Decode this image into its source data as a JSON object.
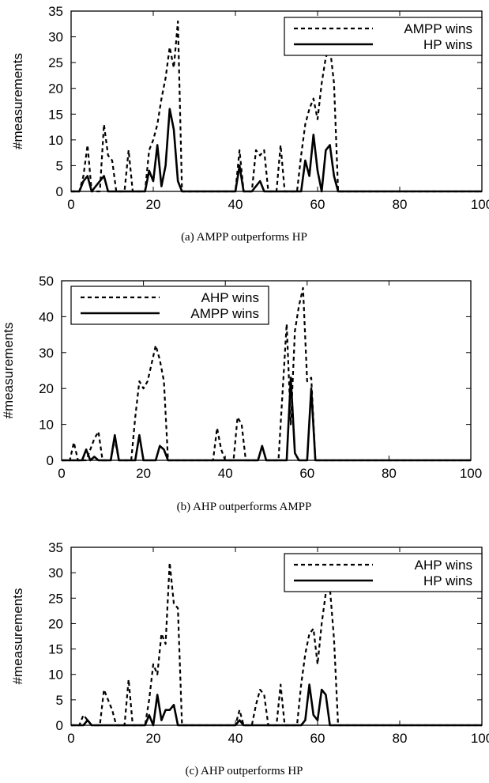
{
  "chart_data": [
    {
      "type": "line",
      "caption": "(a) AMPP outperforms HP",
      "ylabel": "#measurements",
      "xlim": [
        0,
        100
      ],
      "ylim": [
        0,
        35
      ],
      "xticks": [
        "0",
        "20",
        "40",
        "60",
        "80",
        "100"
      ],
      "yticks": [
        "0",
        "5",
        "10",
        "15",
        "20",
        "25",
        "30",
        "35"
      ],
      "legend_position": "top-right",
      "series": [
        {
          "name": "AMPP wins",
          "style": "dashed",
          "points": [
            [
              0,
              0
            ],
            [
              2,
              0
            ],
            [
              3,
              3
            ],
            [
              4,
              9
            ],
            [
              5,
              0
            ],
            [
              6,
              0
            ],
            [
              7,
              0
            ],
            [
              8,
              13
            ],
            [
              9,
              7
            ],
            [
              10,
              6
            ],
            [
              11,
              0
            ],
            [
              12,
              0
            ],
            [
              13,
              0
            ],
            [
              14,
              8
            ],
            [
              15,
              0
            ],
            [
              16,
              0
            ],
            [
              17,
              0
            ],
            [
              18,
              0
            ],
            [
              19,
              8
            ],
            [
              20,
              10
            ],
            [
              21,
              13
            ],
            [
              22,
              18
            ],
            [
              23,
              22
            ],
            [
              24,
              28
            ],
            [
              25,
              24
            ],
            [
              26,
              33
            ],
            [
              27,
              0
            ],
            [
              28,
              0
            ],
            [
              40,
              0
            ],
            [
              41,
              8
            ],
            [
              42,
              0
            ],
            [
              43,
              0
            ],
            [
              44,
              0
            ],
            [
              45,
              8
            ],
            [
              46,
              7
            ],
            [
              47,
              8
            ],
            [
              48,
              0
            ],
            [
              49,
              0
            ],
            [
              50,
              0
            ],
            [
              51,
              9
            ],
            [
              52,
              0
            ],
            [
              53,
              0
            ],
            [
              55,
              0
            ],
            [
              56,
              7
            ],
            [
              57,
              13
            ],
            [
              58,
              16
            ],
            [
              59,
              18
            ],
            [
              60,
              14
            ],
            [
              61,
              21
            ],
            [
              62,
              26
            ],
            [
              63,
              28
            ],
            [
              64,
              21
            ],
            [
              65,
              0
            ],
            [
              66,
              0
            ],
            [
              100,
              0
            ]
          ]
        },
        {
          "name": "HP wins",
          "style": "solid",
          "points": [
            [
              0,
              0
            ],
            [
              2,
              0
            ],
            [
              3,
              2
            ],
            [
              4,
              3
            ],
            [
              5,
              0
            ],
            [
              8,
              3
            ],
            [
              9,
              0
            ],
            [
              18,
              0
            ],
            [
              19,
              4
            ],
            [
              20,
              2
            ],
            [
              21,
              9
            ],
            [
              22,
              1
            ],
            [
              23,
              5
            ],
            [
              24,
              16
            ],
            [
              25,
              12
            ],
            [
              26,
              2
            ],
            [
              27,
              0
            ],
            [
              40,
              0
            ],
            [
              41,
              5
            ],
            [
              42,
              0
            ],
            [
              44,
              0
            ],
            [
              46,
              2
            ],
            [
              47,
              0
            ],
            [
              56,
              0
            ],
            [
              57,
              6
            ],
            [
              58,
              3
            ],
            [
              59,
              11
            ],
            [
              60,
              4
            ],
            [
              61,
              0
            ],
            [
              62,
              8
            ],
            [
              63,
              9
            ],
            [
              64,
              3
            ],
            [
              65,
              0
            ],
            [
              100,
              0
            ]
          ]
        }
      ]
    },
    {
      "type": "line",
      "caption": "(b) AHP outperforms AMPP",
      "ylabel": "#measurements",
      "xlim": [
        0,
        100
      ],
      "ylim": [
        0,
        50
      ],
      "xticks": [
        "0",
        "20",
        "40",
        "60",
        "80",
        "100"
      ],
      "yticks": [
        "0",
        "10",
        "20",
        "30",
        "40",
        "50"
      ],
      "legend_position": "top-left",
      "series": [
        {
          "name": "AHP wins",
          "style": "dashed",
          "points": [
            [
              0,
              0
            ],
            [
              2,
              0
            ],
            [
              3,
              5
            ],
            [
              4,
              0
            ],
            [
              6,
              0
            ],
            [
              7,
              3
            ],
            [
              8,
              6
            ],
            [
              9,
              8
            ],
            [
              10,
              0
            ],
            [
              12,
              0
            ],
            [
              13,
              6
            ],
            [
              14,
              0
            ],
            [
              17,
              0
            ],
            [
              18,
              12
            ],
            [
              19,
              22
            ],
            [
              20,
              20
            ],
            [
              21,
              22
            ],
            [
              22,
              27
            ],
            [
              23,
              32
            ],
            [
              24,
              28
            ],
            [
              25,
              22
            ],
            [
              26,
              0
            ],
            [
              27,
              0
            ],
            [
              37,
              0
            ],
            [
              38,
              9
            ],
            [
              39,
              3
            ],
            [
              40,
              0
            ],
            [
              42,
              0
            ],
            [
              43,
              12
            ],
            [
              44,
              10
            ],
            [
              45,
              0
            ],
            [
              48,
              0
            ],
            [
              49,
              4
            ],
            [
              50,
              0
            ],
            [
              53,
              0
            ],
            [
              55,
              38
            ],
            [
              56,
              10
            ],
            [
              57,
              36
            ],
            [
              58,
              43
            ],
            [
              59,
              48
            ],
            [
              60,
              22
            ],
            [
              61,
              23
            ],
            [
              62,
              0
            ],
            [
              63,
              0
            ],
            [
              100,
              0
            ]
          ]
        },
        {
          "name": "AMPP wins",
          "style": "solid",
          "points": [
            [
              0,
              0
            ],
            [
              5,
              0
            ],
            [
              6,
              3
            ],
            [
              7,
              0
            ],
            [
              8,
              1
            ],
            [
              9,
              0
            ],
            [
              12,
              0
            ],
            [
              13,
              7
            ],
            [
              14,
              0
            ],
            [
              18,
              0
            ],
            [
              19,
              7
            ],
            [
              20,
              0
            ],
            [
              23,
              0
            ],
            [
              24,
              4
            ],
            [
              25,
              3
            ],
            [
              26,
              0
            ],
            [
              48,
              0
            ],
            [
              49,
              4
            ],
            [
              50,
              0
            ],
            [
              55,
              0
            ],
            [
              56,
              23
            ],
            [
              57,
              2
            ],
            [
              58,
              0
            ],
            [
              60,
              0
            ],
            [
              61,
              20
            ],
            [
              62,
              0
            ],
            [
              100,
              0
            ]
          ]
        }
      ]
    },
    {
      "type": "line",
      "caption": "(c) AHP outperforms HP",
      "ylabel": "#measurements",
      "xlim": [
        0,
        100
      ],
      "ylim": [
        0,
        35
      ],
      "xticks": [
        "0",
        "20",
        "40",
        "60",
        "80",
        "100"
      ],
      "yticks": [
        "0",
        "5",
        "10",
        "15",
        "20",
        "25",
        "30",
        "35"
      ],
      "legend_position": "top-right",
      "series": [
        {
          "name": "AHP wins",
          "style": "dashed",
          "points": [
            [
              0,
              0
            ],
            [
              2,
              0
            ],
            [
              3,
              2
            ],
            [
              4,
              1
            ],
            [
              5,
              0
            ],
            [
              7,
              0
            ],
            [
              8,
              7
            ],
            [
              9,
              5
            ],
            [
              10,
              3
            ],
            [
              11,
              0
            ],
            [
              13,
              0
            ],
            [
              14,
              9
            ],
            [
              15,
              0
            ],
            [
              18,
              0
            ],
            [
              19,
              5
            ],
            [
              20,
              12
            ],
            [
              21,
              10
            ],
            [
              22,
              18
            ],
            [
              23,
              16
            ],
            [
              24,
              32
            ],
            [
              25,
              24
            ],
            [
              26,
              23
            ],
            [
              27,
              0
            ],
            [
              28,
              0
            ],
            [
              40,
              0
            ],
            [
              41,
              3
            ],
            [
              42,
              0
            ],
            [
              44,
              0
            ],
            [
              45,
              4
            ],
            [
              46,
              7
            ],
            [
              47,
              6
            ],
            [
              48,
              0
            ],
            [
              50,
              0
            ],
            [
              51,
              8
            ],
            [
              52,
              0
            ],
            [
              55,
              0
            ],
            [
              56,
              8
            ],
            [
              57,
              14
            ],
            [
              58,
              18
            ],
            [
              59,
              19
            ],
            [
              60,
              12
            ],
            [
              61,
              20
            ],
            [
              62,
              26
            ],
            [
              63,
              27
            ],
            [
              64,
              17
            ],
            [
              65,
              0
            ],
            [
              66,
              0
            ],
            [
              100,
              0
            ]
          ]
        },
        {
          "name": "HP wins",
          "style": "solid",
          "points": [
            [
              0,
              0
            ],
            [
              3,
              0
            ],
            [
              4,
              1
            ],
            [
              5,
              0
            ],
            [
              18,
              0
            ],
            [
              19,
              2
            ],
            [
              20,
              0
            ],
            [
              21,
              6
            ],
            [
              22,
              1
            ],
            [
              23,
              3
            ],
            [
              24,
              3
            ],
            [
              25,
              4
            ],
            [
              26,
              0
            ],
            [
              40,
              0
            ],
            [
              41,
              1
            ],
            [
              42,
              0
            ],
            [
              56,
              0
            ],
            [
              57,
              1
            ],
            [
              58,
              8
            ],
            [
              59,
              2
            ],
            [
              60,
              1
            ],
            [
              61,
              7
            ],
            [
              62,
              6
            ],
            [
              63,
              0
            ],
            [
              100,
              0
            ]
          ]
        }
      ]
    }
  ]
}
